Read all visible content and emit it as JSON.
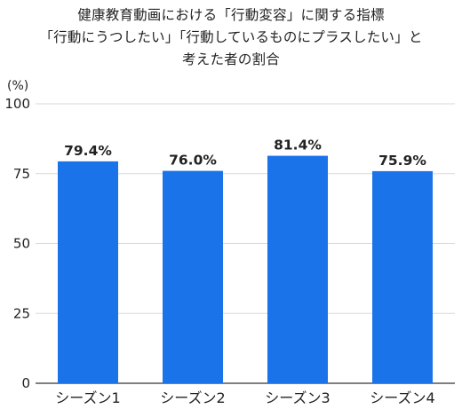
{
  "title_lines": [
    "健康教育動画における「行動変容」に関する指標",
    "「行動にうつしたい」「行動しているものにプラスしたい」と",
    "考えた者の割合"
  ],
  "chart_data": {
    "type": "bar",
    "categories": [
      "シーズン1",
      "シーズン2",
      "シーズン3",
      "シーズン4"
    ],
    "values": [
      79.4,
      76.0,
      81.4,
      75.9
    ],
    "value_labels": [
      "79.4%",
      "76.0%",
      "81.4%",
      "75.9%"
    ],
    "unit_label": "(%)",
    "ylim": [
      0,
      100
    ],
    "yticks": [
      0,
      25,
      50,
      75,
      100
    ],
    "grid": true,
    "bar_color": "#1a73e8"
  }
}
